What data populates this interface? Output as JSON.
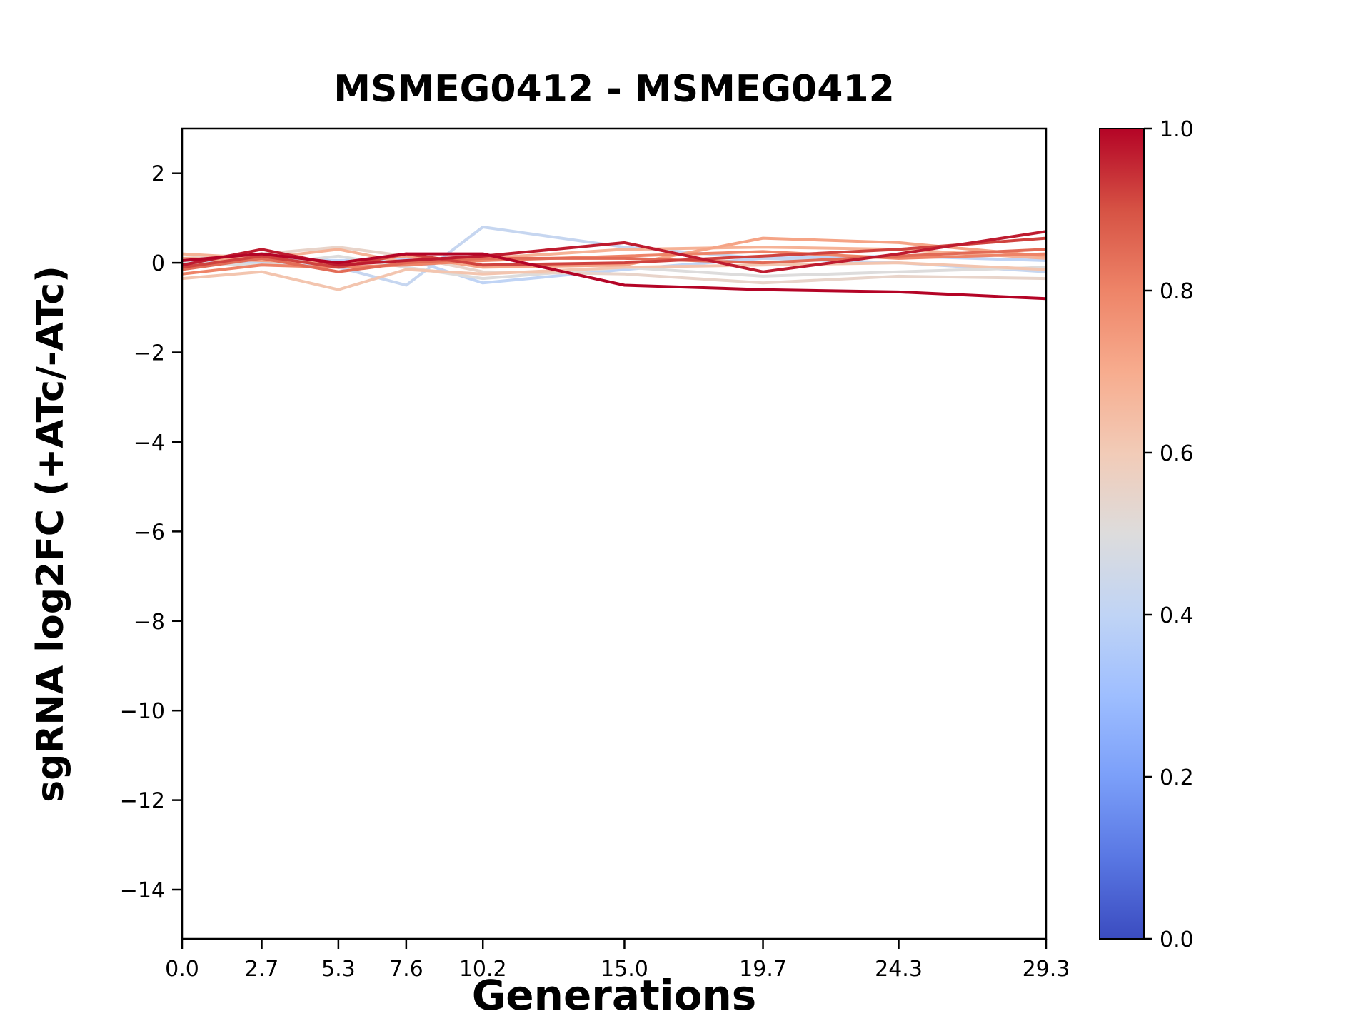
{
  "chart_data": {
    "type": "line",
    "title": "MSMEG0412 - MSMEG0412",
    "xlabel": "Generations",
    "ylabel": "sgRNA log2FC (+ATc/-ATc)",
    "x": [
      0.0,
      2.7,
      5.3,
      7.6,
      10.2,
      15.0,
      19.7,
      24.3,
      29.3
    ],
    "xtick_labels": [
      "0.0",
      "2.7",
      "5.3",
      "7.6",
      "10.2",
      "15.0",
      "19.7",
      "24.3",
      "29.3"
    ],
    "ytick_values": [
      2,
      0,
      -2,
      -4,
      -6,
      -8,
      -10,
      -12,
      -14
    ],
    "ytick_labels": [
      "2",
      "0",
      "−2",
      "−4",
      "−6",
      "−8",
      "−10",
      "−12",
      "−14"
    ],
    "xlim": [
      0,
      29.3
    ],
    "ylim": [
      -15.1,
      3.0
    ],
    "grid": false,
    "legend_position": "none",
    "series": [
      {
        "colormap_value": 1.0,
        "color": "#b40426",
        "values": [
          0.05,
          0.2,
          0.0,
          0.2,
          0.2,
          -0.5,
          -0.6,
          -0.65,
          -0.8
        ]
      },
      {
        "colormap_value": 0.97,
        "color": "#be1b2f",
        "values": [
          -0.05,
          0.3,
          -0.05,
          0.05,
          0.15,
          0.45,
          -0.2,
          0.2,
          0.7
        ]
      },
      {
        "colormap_value": 0.92,
        "color": "#cf423e",
        "values": [
          -0.1,
          0.15,
          -0.1,
          0.2,
          -0.05,
          0.0,
          0.15,
          0.3,
          0.55
        ]
      },
      {
        "colormap_value": 0.85,
        "color": "#e26b56",
        "values": [
          -0.15,
          0.1,
          -0.2,
          0.0,
          0.1,
          0.1,
          0.0,
          0.15,
          0.3
        ]
      },
      {
        "colormap_value": 0.8,
        "color": "#ee8468",
        "values": [
          -0.25,
          -0.05,
          -0.1,
          -0.05,
          0.05,
          0.15,
          0.25,
          0.1,
          0.2
        ]
      },
      {
        "colormap_value": 0.72,
        "color": "#f5a486",
        "values": [
          0.1,
          0.05,
          0.0,
          0.15,
          -0.1,
          -0.05,
          0.55,
          0.45,
          0.15
        ]
      },
      {
        "colormap_value": 0.68,
        "color": "#f6b296",
        "values": [
          0.2,
          0.1,
          0.3,
          0.0,
          0.1,
          0.3,
          0.35,
          0.3,
          0.1
        ]
      },
      {
        "colormap_value": 0.62,
        "color": "#f3c5af",
        "values": [
          -0.35,
          -0.2,
          -0.6,
          -0.15,
          -0.25,
          -0.1,
          -0.05,
          0.0,
          -0.15
        ]
      },
      {
        "colormap_value": 0.55,
        "color": "#e8d4ca",
        "values": [
          0.1,
          0.2,
          0.35,
          0.15,
          -0.2,
          -0.25,
          -0.45,
          -0.3,
          -0.35
        ]
      },
      {
        "colormap_value": 0.5,
        "color": "#dddcdc",
        "values": [
          0.0,
          -0.05,
          0.15,
          -0.1,
          -0.35,
          -0.1,
          -0.3,
          -0.2,
          -0.1
        ]
      },
      {
        "colormap_value": 0.42,
        "color": "#c6d6f0",
        "values": [
          0.05,
          0.0,
          -0.1,
          -0.5,
          0.8,
          0.35,
          0.1,
          0.0,
          -0.2
        ]
      },
      {
        "colormap_value": 0.4,
        "color": "#c0d4f5",
        "values": [
          0.0,
          0.1,
          0.05,
          0.1,
          -0.45,
          -0.15,
          0.1,
          0.15,
          0.05
        ]
      }
    ],
    "colorbar": {
      "min": 0.0,
      "max": 1.0,
      "tick_values": [
        0.0,
        0.2,
        0.4,
        0.6,
        0.8,
        1.0
      ],
      "tick_labels": [
        "0.0",
        "0.2",
        "0.4",
        "0.6",
        "0.8",
        "1.0"
      ],
      "colormap": "coolwarm",
      "stops": [
        {
          "offset": 0.0,
          "color": "#3b4cc0"
        },
        {
          "offset": 0.1,
          "color": "#5977e3"
        },
        {
          "offset": 0.2,
          "color": "#7b9ff9"
        },
        {
          "offset": 0.3,
          "color": "#9ebeff"
        },
        {
          "offset": 0.4,
          "color": "#c0d4f5"
        },
        {
          "offset": 0.5,
          "color": "#dddcdc"
        },
        {
          "offset": 0.6,
          "color": "#f2cbb7"
        },
        {
          "offset": 0.7,
          "color": "#f7ac8e"
        },
        {
          "offset": 0.8,
          "color": "#ee8468"
        },
        {
          "offset": 0.9,
          "color": "#d65244"
        },
        {
          "offset": 1.0,
          "color": "#b40426"
        }
      ]
    }
  }
}
